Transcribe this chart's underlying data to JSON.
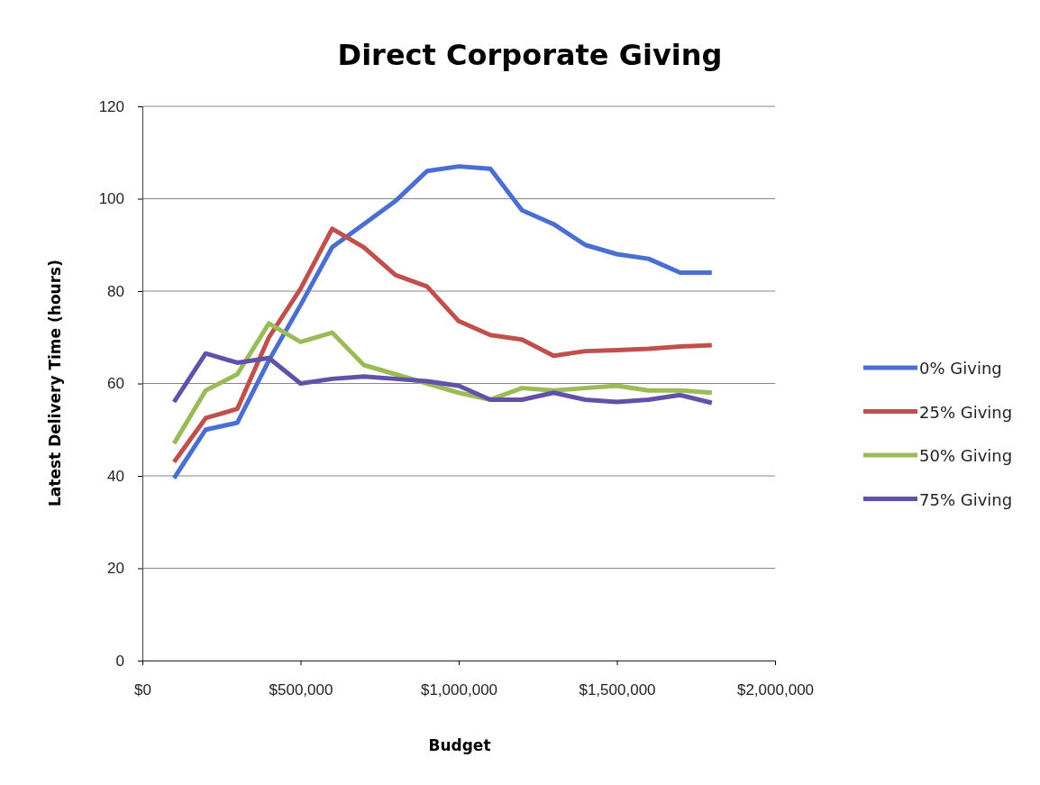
{
  "chart_data": {
    "type": "line",
    "title": "Direct Corporate Giving",
    "xlabel": "Budget",
    "ylabel": "Latest Delivery Time (hours)",
    "x": [
      100000,
      200000,
      300000,
      400000,
      500000,
      600000,
      700000,
      800000,
      900000,
      1000000,
      1100000,
      1200000,
      1300000,
      1400000,
      1500000,
      1600000,
      1700000,
      1800000
    ],
    "series": [
      {
        "name": "0% Giving",
        "color": "#4a6fd0",
        "values": [
          39.5,
          50,
          51.5,
          65,
          77,
          89.5,
          94.5,
          99.5,
          106,
          107,
          106.5,
          97.5,
          94.5,
          90,
          88,
          87,
          84,
          84
        ]
      },
      {
        "name": "25% Giving",
        "color": "#c0504d",
        "values": [
          43,
          52.5,
          54.5,
          70,
          80.5,
          93.5,
          89.5,
          83.5,
          81,
          73.5,
          70.5,
          69.5,
          66,
          67,
          67.2,
          67.5,
          68,
          68.3
        ]
      },
      {
        "name": "50% Giving",
        "color": "#9bbb59",
        "values": [
          47,
          58.5,
          62,
          73,
          69,
          71,
          64,
          62,
          60,
          58,
          56.5,
          59,
          58.5,
          59,
          59.5,
          58.5,
          58.5,
          58
        ]
      },
      {
        "name": "75% Giving",
        "color": "#6052a8",
        "values": [
          56,
          66.5,
          64.5,
          65.5,
          60,
          61,
          61.5,
          61,
          60.5,
          59.5,
          56.5,
          56.5,
          58,
          56.5,
          56,
          56.5,
          57.5,
          55.8
        ]
      }
    ],
    "xlim": [
      0,
      2000000
    ],
    "xticks": [
      {
        "value": 0,
        "label": "$0"
      },
      {
        "value": 500000,
        "label": "$500,000"
      },
      {
        "value": 1000000,
        "label": "$1,000,000"
      },
      {
        "value": 1500000,
        "label": "$1,500,000"
      },
      {
        "value": 2000000,
        "label": "$2,000,000"
      }
    ],
    "ylim": [
      0,
      120
    ],
    "yticks": [
      0,
      20,
      40,
      60,
      80,
      100,
      120
    ],
    "grid": "y",
    "legend": "right",
    "marker": "none",
    "line_style": "solid"
  }
}
